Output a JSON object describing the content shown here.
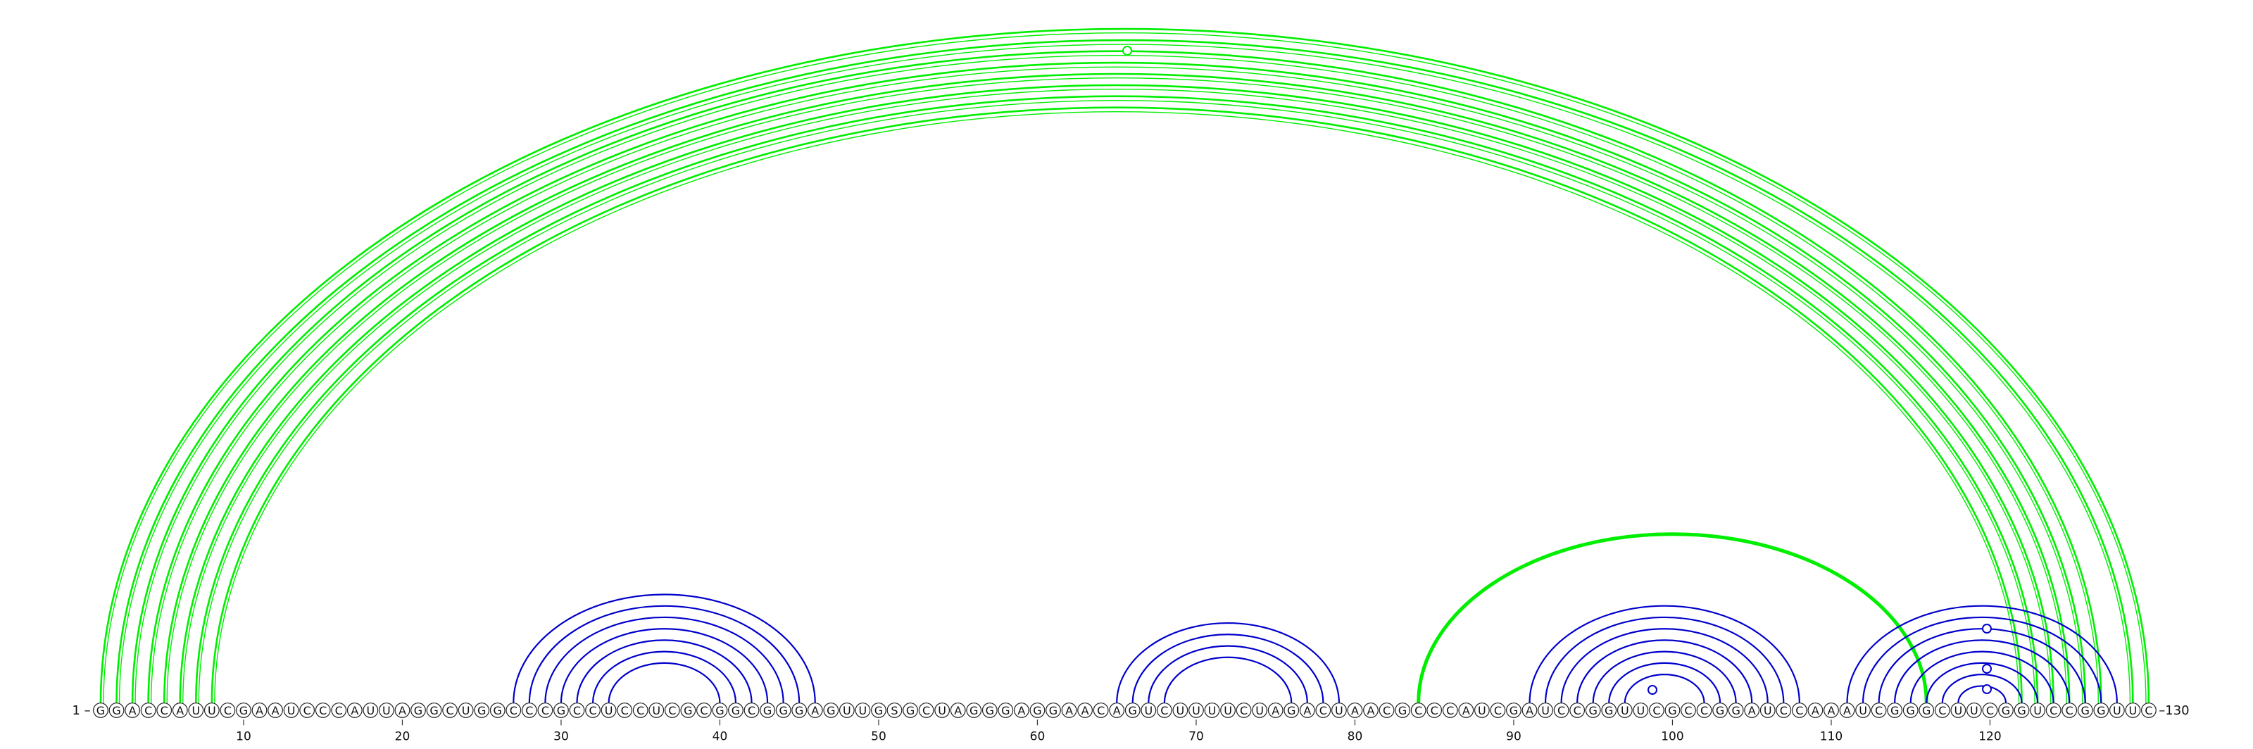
{
  "diagram": {
    "sequence": "GGACCAUUCGAAUCCCAUUAGGCUGGCCCGCCUCCUCGCGGCGGGAGUUGSGCUAGGGAGGAACAGUCUUUUCUAGACUAACGCCCAUCGAUCCGGUUCGCCGGAUCCAAAUCGGGCUUCGGUCCGGUUC",
    "start_label": "1 –",
    "end_label": "–130",
    "ticks": [
      "10",
      "20",
      "30",
      "40",
      "50",
      "60",
      "70",
      "80",
      "90",
      "100",
      "110",
      "120"
    ],
    "colors": {
      "green": "#00ee00",
      "blue": "#0000cc",
      "outline": "#222222"
    },
    "arc_groups": [
      {
        "name": "pseudoknot-long",
        "color": "green",
        "stroke": 2.6,
        "pairs": [
          [
            1,
            130
          ],
          [
            2,
            129
          ],
          [
            3,
            127
          ],
          [
            4,
            126
          ],
          [
            5,
            125
          ],
          [
            6,
            124
          ],
          [
            7,
            123
          ],
          [
            8,
            122
          ]
        ]
      },
      {
        "name": "pseudoknot-mid",
        "color": "green",
        "stroke": 5.0,
        "pairs": [
          [
            84,
            116
          ]
        ]
      },
      {
        "name": "helix-A",
        "color": "blue",
        "stroke": 2.2,
        "pairs": [
          [
            27,
            46
          ],
          [
            28,
            45
          ],
          [
            29,
            44
          ],
          [
            30,
            43
          ],
          [
            31,
            42
          ],
          [
            32,
            41
          ],
          [
            33,
            40
          ]
        ]
      },
      {
        "name": "helix-B",
        "color": "blue",
        "stroke": 2.2,
        "pairs": [
          [
            65,
            79
          ],
          [
            66,
            78
          ],
          [
            67,
            77
          ],
          [
            68,
            76
          ]
        ]
      },
      {
        "name": "helix-C",
        "color": "blue",
        "stroke": 2.2,
        "pairs": [
          [
            91,
            108
          ],
          [
            92,
            107
          ],
          [
            93,
            106
          ],
          [
            94,
            105
          ],
          [
            95,
            104
          ],
          [
            96,
            103
          ],
          [
            97,
            102
          ]
        ]
      },
      {
        "name": "helix-D",
        "color": "blue",
        "stroke": 2.2,
        "pairs": [
          [
            111,
            128
          ],
          [
            112,
            127
          ],
          [
            113,
            126
          ],
          [
            114,
            125
          ],
          [
            115,
            124
          ],
          [
            116,
            123
          ],
          [
            117,
            122
          ],
          [
            118,
            121
          ]
        ]
      }
    ]
  }
}
